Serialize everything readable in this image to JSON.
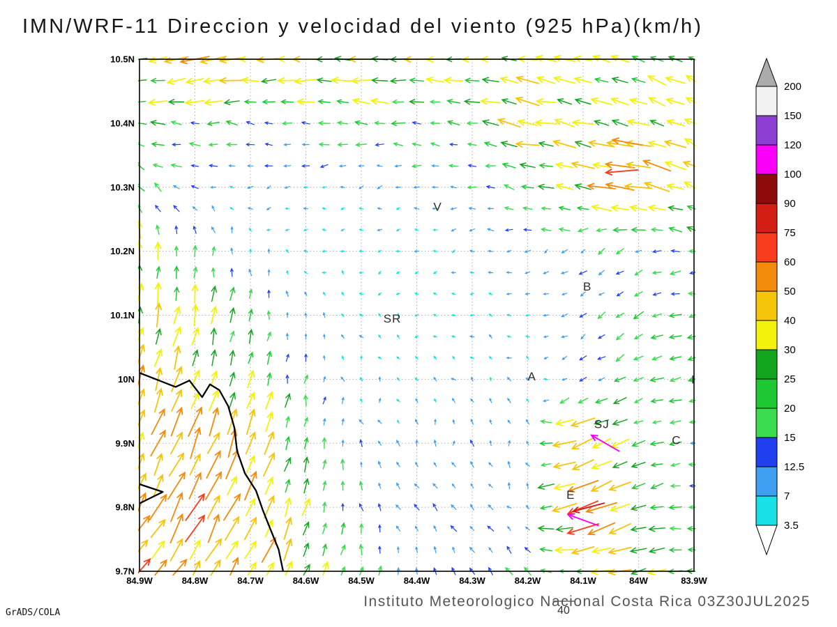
{
  "title": "IMN/WRF-11 Direccion y velocidad del viento (925 hPa)(km/h)",
  "footer": {
    "caption": "Instituto Meteorologico Nacional Costa Rica 03Z30JUL2025",
    "credit": "GrADS/COLA"
  },
  "chart_data": {
    "type": "vector_field",
    "title": "IMN/WRF-11 Direccion y velocidad del viento (925 hPa)(km/h)",
    "units": "km/h",
    "valid_time": "03Z30JUL2025",
    "projection": {
      "lon_min": -84.9,
      "lon_max": -83.9,
      "lat_min": 9.7,
      "lat_max": 10.5
    },
    "axes": {
      "x_tick_values": [
        -84.9,
        -84.8,
        -84.7,
        -84.6,
        -84.5,
        -84.4,
        -84.3,
        -84.2,
        -84.1,
        -84.0,
        -83.9
      ],
      "x_tick_labels": [
        "84.9W",
        "84.8W",
        "84.7W",
        "84.6W",
        "84.5W",
        "84.4W",
        "84.3W",
        "84.2W",
        "84.1W",
        "84W",
        "83.9W"
      ],
      "y_tick_values": [
        10.5,
        10.4,
        10.3,
        10.2,
        10.1,
        10.0,
        9.9,
        9.8,
        9.7
      ],
      "y_tick_labels": [
        "10.5N",
        "10.4N",
        "10.3N",
        "10.2N",
        "10.1N",
        "10N",
        "9.9N",
        "9.8N",
        "9.7N"
      ],
      "grid": "dotted"
    },
    "colorbar": {
      "levels": [
        3.5,
        7,
        12.5,
        15,
        20,
        25,
        30,
        40,
        50,
        60,
        75,
        90,
        100,
        120,
        150,
        200
      ],
      "labels": [
        "3.5",
        "7",
        "12.5",
        "15",
        "20",
        "25",
        "30",
        "40",
        "50",
        "60",
        "75",
        "90",
        "100",
        "120",
        "150",
        "200"
      ],
      "band_colors": [
        "#19e0e6",
        "#3f9ff2",
        "#2040f0",
        "#3cdc50",
        "#1ec832",
        "#12a51e",
        "#f2f20c",
        "#f5c50a",
        "#f28c0a",
        "#fa3c1e",
        "#d21e14",
        "#8f0a0a",
        "#fa00fa",
        "#8c3fd2",
        "#f2f2f2"
      ],
      "below_color": "#ffffff",
      "above_color": "#ababab"
    },
    "wind_field": {
      "description": "Wind vectors every ~0.033 deg; coarse sampled field (u=eastward, v=northward, km/h), rows south to north",
      "control_lats": [
        9.7,
        9.8,
        9.9,
        10.0,
        10.1,
        10.2,
        10.3,
        10.4,
        10.5
      ],
      "control_lons": [
        -84.9,
        -84.8,
        -84.7,
        -84.6,
        -84.5,
        -84.4,
        -84.3,
        -84.2,
        -84.1,
        -84.0,
        -83.9
      ],
      "u": [
        [
          30,
          28,
          22,
          14,
          2,
          -4,
          -6,
          -10,
          -28,
          -34,
          -26
        ],
        [
          26,
          24,
          18,
          8,
          -4,
          -8,
          -6,
          -8,
          -58,
          -20,
          -18
        ],
        [
          22,
          20,
          14,
          4,
          -2,
          -4,
          0,
          -6,
          -45,
          -22,
          -16
        ],
        [
          14,
          12,
          8,
          2,
          -2,
          -4,
          -4,
          -6,
          -10,
          -16,
          -22
        ],
        [
          8,
          6,
          2,
          -2,
          -4,
          -4,
          -6,
          -6,
          -10,
          -14,
          -18
        ],
        [
          -2,
          0,
          -4,
          -4,
          -5,
          -6,
          -6,
          -8,
          -10,
          -12,
          -16
        ],
        [
          -14,
          -10,
          -8,
          -6,
          -8,
          -10,
          -12,
          -16,
          -34,
          -52,
          -30
        ],
        [
          -22,
          -18,
          -16,
          -18,
          -20,
          -18,
          -16,
          -42,
          -35,
          -30,
          -26
        ],
        [
          -30,
          -46,
          -40,
          -38,
          -36,
          -34,
          -32,
          -30,
          -28,
          -26,
          -24
        ]
      ],
      "v": [
        [
          42,
          44,
          38,
          30,
          16,
          12,
          12,
          10,
          -4,
          -10,
          0
        ],
        [
          46,
          46,
          40,
          26,
          12,
          10,
          8,
          6,
          -22,
          -6,
          4
        ],
        [
          46,
          44,
          38,
          22,
          10,
          8,
          10,
          8,
          -18,
          -8,
          2
        ],
        [
          40,
          36,
          28,
          14,
          6,
          4,
          6,
          4,
          -6,
          -8,
          -6
        ],
        [
          34,
          30,
          18,
          8,
          4,
          2,
          2,
          0,
          -8,
          -10,
          -4
        ],
        [
          28,
          20,
          8,
          2,
          0,
          -2,
          -2,
          -4,
          -6,
          -6,
          2
        ],
        [
          14,
          2,
          -4,
          -4,
          -2,
          0,
          2,
          4,
          8,
          10,
          14
        ],
        [
          2,
          0,
          2,
          0,
          2,
          2,
          4,
          8,
          8,
          10,
          12
        ],
        [
          -4,
          -6,
          -2,
          0,
          2,
          0,
          2,
          4,
          8,
          10,
          12
        ]
      ],
      "arrow_cols": 31,
      "arrow_rows": 25,
      "arrow_colors": [
        "#7d2fd4",
        "#19e0e6",
        "#3f9ff2",
        "#2040f0",
        "#3cdc50",
        "#1ec832",
        "#12a51e",
        "#f2f20c",
        "#f5c50a",
        "#f28c0a",
        "#fa3c1e",
        "#d21e14",
        "#8f0a0a",
        "#fa00fa",
        "#8c3fd2",
        "#f2f2f2",
        "#ababab"
      ],
      "reference": {
        "speed": 40,
        "label": "40"
      }
    },
    "notable_vectors": [
      {
        "lon": -84.06,
        "lat": 9.9,
        "dir_deg": 150,
        "speed": 108
      },
      {
        "lon": -84.09,
        "lat": 9.8,
        "dir_deg": 195,
        "speed": 80
      },
      {
        "lon": -84.1,
        "lat": 9.78,
        "dir_deg": 160,
        "speed": 102
      },
      {
        "lon": -84.03,
        "lat": 10.325,
        "dir_deg": 185,
        "speed": 68
      },
      {
        "lon": -84.02,
        "lat": 10.37,
        "dir_deg": 170,
        "speed": 55
      }
    ],
    "stations": [
      {
        "label": "V",
        "lon": -84.37,
        "lat": 10.27
      },
      {
        "label": "B",
        "lon": -84.1,
        "lat": 10.145
      },
      {
        "label": "SR",
        "lon": -84.46,
        "lat": 10.095
      },
      {
        "label": "A",
        "lon": -84.2,
        "lat": 10.005
      },
      {
        "label": "SJ",
        "lon": -84.08,
        "lat": 9.93
      },
      {
        "label": "C",
        "lon": -83.94,
        "lat": 9.905
      },
      {
        "label": "E",
        "lon": -84.13,
        "lat": 9.82
      },
      {
        "label": "I",
        "lon": -83.905,
        "lat": 10.0
      }
    ],
    "coastlines": [
      [
        [
          -84.9,
          10.01
        ],
        [
          -84.835,
          9.988
        ],
        [
          -84.81,
          9.998
        ],
        [
          -84.787,
          9.972
        ],
        [
          -84.773,
          9.992
        ],
        [
          -84.756,
          9.983
        ],
        [
          -84.74,
          9.958
        ],
        [
          -84.729,
          9.925
        ],
        [
          -84.724,
          9.888
        ],
        [
          -84.71,
          9.853
        ],
        [
          -84.69,
          9.826
        ],
        [
          -84.677,
          9.794
        ],
        [
          -84.664,
          9.766
        ],
        [
          -84.649,
          9.734
        ],
        [
          -84.641,
          9.7
        ]
      ],
      [
        [
          -84.9,
          9.836
        ],
        [
          -84.858,
          9.824
        ],
        [
          -84.9,
          9.806
        ]
      ]
    ]
  }
}
